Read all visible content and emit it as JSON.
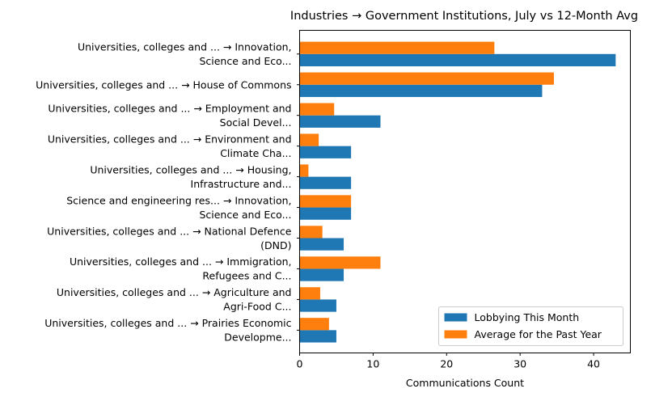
{
  "chart_data": {
    "type": "bar",
    "orientation": "horizontal",
    "title": "Industries → Government Institutions, July vs 12-Month Avg",
    "xlabel": "Communications Count",
    "ylabel": "",
    "xlim": [
      0,
      45
    ],
    "x_ticks": [
      0,
      10,
      20,
      30,
      40
    ],
    "grid": false,
    "legend_position": "lower-right",
    "categories": [
      [
        "Universities, colleges and ... → Innovation,",
        "Science and Eco..."
      ],
      [
        "Universities, colleges and ... → House of Commons"
      ],
      [
        "Universities, colleges and ... → Employment and",
        "Social Devel..."
      ],
      [
        "Universities, colleges and ... → Environment and",
        "Climate Cha..."
      ],
      [
        "Universities, colleges and ... → Housing,",
        "Infrastructure and..."
      ],
      [
        "Science and engineering res... → Innovation,",
        "Science and Eco..."
      ],
      [
        "Universities, colleges and ... → National Defence",
        "(DND)"
      ],
      [
        "Universities, colleges and ... → Immigration,",
        "Refugees and C..."
      ],
      [
        "Universities, colleges and ... → Agriculture and",
        "Agri-Food C..."
      ],
      [
        "Universities, colleges and ... → Prairies Economic",
        "Developme..."
      ]
    ],
    "series": [
      {
        "name": "Lobbying This Month",
        "color": "#1f77b4",
        "values": [
          43,
          33,
          11,
          7,
          7,
          7,
          6,
          6,
          5,
          5
        ]
      },
      {
        "name": "Average for the Past Year",
        "color": "#ff7f0e",
        "values": [
          26.5,
          34.6,
          4.7,
          2.6,
          1.2,
          7,
          3.1,
          11,
          2.8,
          4
        ]
      }
    ]
  }
}
